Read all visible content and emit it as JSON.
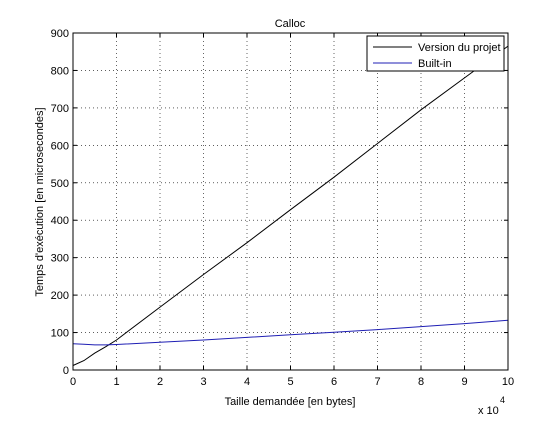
{
  "chart_data": {
    "type": "line",
    "title": "Calloc",
    "xlabel": "Taille demandée [en bytes]",
    "ylabel": "Temps d'exécution [en microsecondes]",
    "x_exponent_label": "x 10",
    "x_exponent_power": "4",
    "xlim": [
      0,
      100000
    ],
    "ylim": [
      0,
      900
    ],
    "x_ticks": [
      0,
      10000,
      20000,
      30000,
      40000,
      50000,
      60000,
      70000,
      80000,
      90000,
      100000
    ],
    "x_tick_labels": [
      "0",
      "1",
      "2",
      "3",
      "4",
      "5",
      "6",
      "7",
      "8",
      "9",
      "10"
    ],
    "y_ticks": [
      0,
      100,
      200,
      300,
      400,
      500,
      600,
      700,
      800,
      900
    ],
    "y_tick_labels": [
      "0",
      "100",
      "200",
      "300",
      "400",
      "500",
      "600",
      "700",
      "800",
      "900"
    ],
    "grid": true,
    "legend_position": "top-right",
    "series": [
      {
        "name": "Version du projet",
        "color": "#000000",
        "x": [
          0,
          2500,
          5000,
          7500,
          10000,
          20000,
          30000,
          40000,
          50000,
          60000,
          70000,
          80000,
          90000,
          100000
        ],
        "y": [
          12,
          25,
          45,
          62,
          80,
          168,
          255,
          340,
          428,
          515,
          605,
          695,
          780,
          865
        ]
      },
      {
        "name": "Built-in",
        "color": "#1f1fb4",
        "x": [
          0,
          2500,
          5000,
          7500,
          10000,
          20000,
          30000,
          40000,
          50000,
          60000,
          70000,
          80000,
          90000,
          100000
        ],
        "y": [
          70,
          69,
          67,
          67,
          68,
          74,
          80,
          87,
          94,
          101,
          108,
          116,
          124,
          133
        ]
      }
    ]
  }
}
